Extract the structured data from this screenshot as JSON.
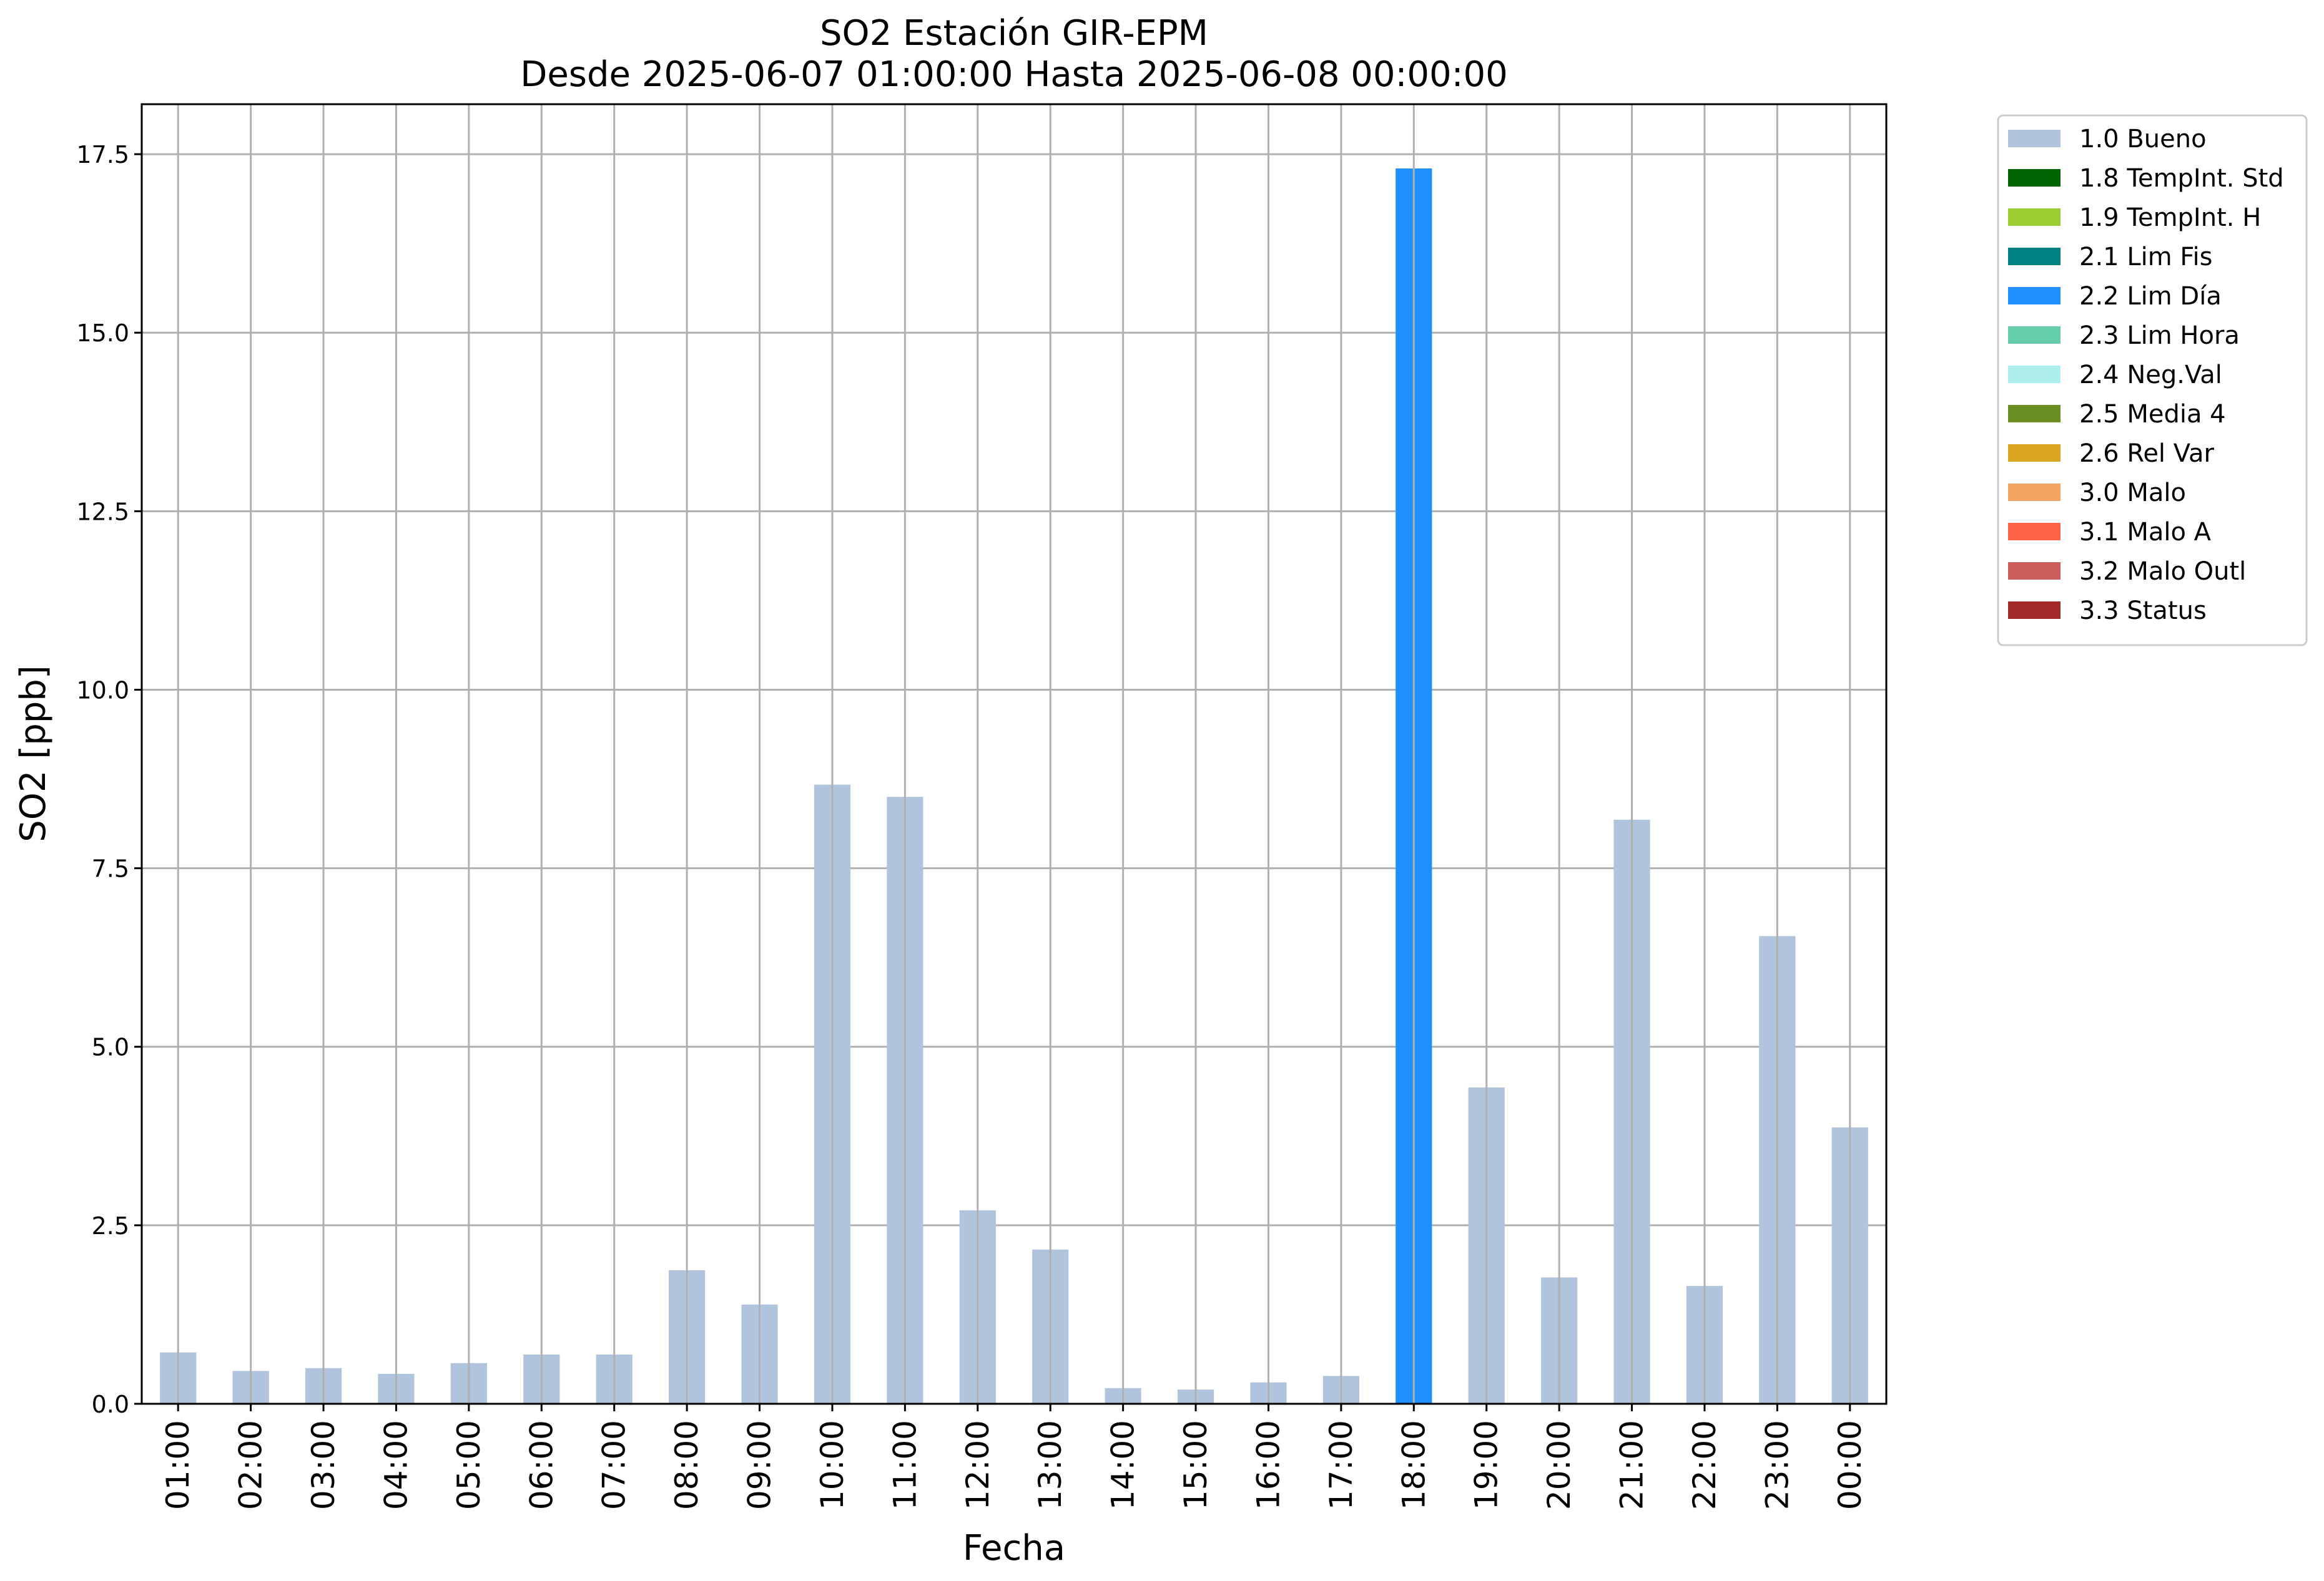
{
  "chart_data": {
    "type": "bar",
    "title": "SO2 Estación GIR-EPM",
    "subtitle": "Desde 2025-06-07 01:00:00 Hasta 2025-06-08 00:00:00",
    "xlabel": "Fecha",
    "ylabel": "SO2 [ppb]",
    "ylim": [
      0,
      18.2
    ],
    "yticks": [
      0.0,
      2.5,
      5.0,
      7.5,
      10.0,
      12.5,
      15.0,
      17.5
    ],
    "ytick_labels": [
      "0.0",
      "2.5",
      "5.0",
      "7.5",
      "10.0",
      "12.5",
      "15.0",
      "17.5"
    ],
    "grid": true,
    "legend_position": "outside-top-right",
    "categories": [
      "01:00",
      "02:00",
      "03:00",
      "04:00",
      "05:00",
      "06:00",
      "07:00",
      "08:00",
      "09:00",
      "10:00",
      "11:00",
      "12:00",
      "13:00",
      "14:00",
      "15:00",
      "16:00",
      "17:00",
      "18:00",
      "19:00",
      "20:00",
      "21:00",
      "22:00",
      "23:00",
      "00:00"
    ],
    "values": [
      0.72,
      0.46,
      0.5,
      0.42,
      0.57,
      0.69,
      0.69,
      1.87,
      1.39,
      8.67,
      8.5,
      2.71,
      2.16,
      0.22,
      0.2,
      0.3,
      0.39,
      17.3,
      4.43,
      1.77,
      8.18,
      1.65,
      6.55,
      3.87
    ],
    "bar_flags": [
      "1.0 Bueno",
      "1.0 Bueno",
      "1.0 Bueno",
      "1.0 Bueno",
      "1.0 Bueno",
      "1.0 Bueno",
      "1.0 Bueno",
      "1.0 Bueno",
      "1.0 Bueno",
      "1.0 Bueno",
      "1.0 Bueno",
      "1.0 Bueno",
      "1.0 Bueno",
      "1.0 Bueno",
      "1.0 Bueno",
      "1.0 Bueno",
      "1.0 Bueno",
      "2.2 Lim Día",
      "1.0 Bueno",
      "1.0 Bueno",
      "1.0 Bueno",
      "1.0 Bueno",
      "1.0 Bueno",
      "1.0 Bueno"
    ],
    "legend": [
      {
        "label": "1.0 Bueno",
        "color": "#b0c4de"
      },
      {
        "label": "1.8 TempInt. Std",
        "color": "#006400"
      },
      {
        "label": "1.9 TempInt. H",
        "color": "#9acd32"
      },
      {
        "label": "2.1 Lim Fis",
        "color": "#008080"
      },
      {
        "label": "2.2 Lim Día",
        "color": "#1e90ff"
      },
      {
        "label": "2.3 Lim Hora",
        "color": "#66cdaa"
      },
      {
        "label": "2.4 Neg.Val",
        "color": "#afeeee"
      },
      {
        "label": "2.5 Media 4",
        "color": "#6b8e23"
      },
      {
        "label": "2.6 Rel Var",
        "color": "#daa520"
      },
      {
        "label": "3.0 Malo",
        "color": "#f4a460"
      },
      {
        "label": "3.1 Malo A",
        "color": "#ff6347"
      },
      {
        "label": "3.2 Malo Outl",
        "color": "#cd5c5c"
      },
      {
        "label": "3.3 Status",
        "color": "#a52a2a"
      }
    ]
  }
}
